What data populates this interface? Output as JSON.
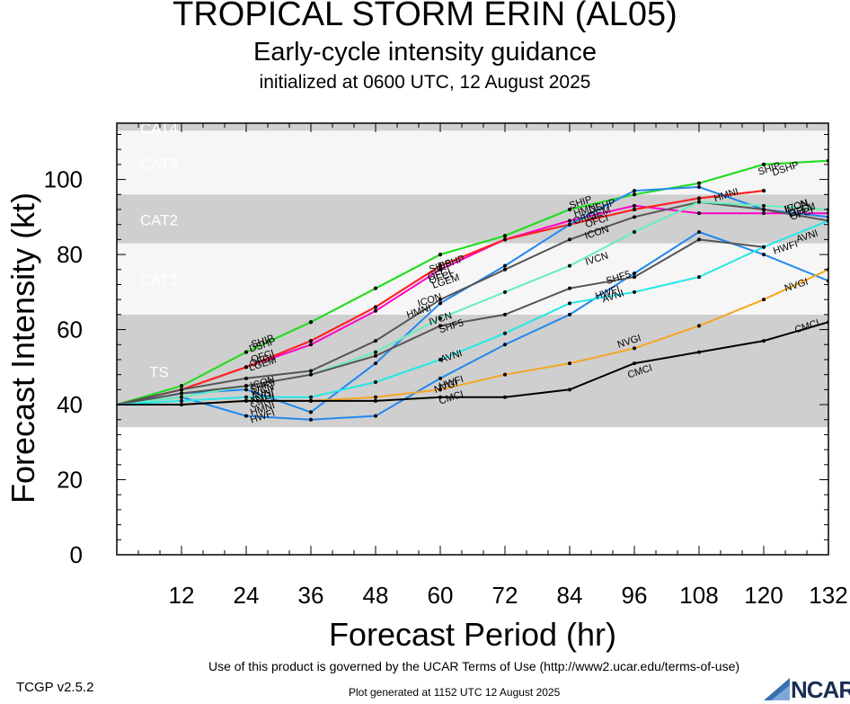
{
  "title": "TROPICAL STORM ERIN (AL05)",
  "subtitle": "Early-cycle intensity guidance",
  "initialized": "initialized at 0600 UTC, 12 August 2025",
  "footer": {
    "terms": "Use of this product is governed by the UCAR Terms of Use (http://www2.ucar.edu/terms-of-use)",
    "version": "TCGP v2.5.2",
    "generated": "Plot generated at 1152 UTC   12 August 2025",
    "logo_text": "NCAR",
    "logo_icon": "ncar-logo-icon"
  },
  "chart_data": {
    "type": "line",
    "xlabel": "Forecast Period (hr)",
    "ylabel": "Forecast Intensity (kt)",
    "xlim": [
      0,
      132
    ],
    "ylim": [
      0,
      115
    ],
    "xticks": [
      12,
      24,
      36,
      48,
      60,
      72,
      84,
      96,
      108,
      120,
      132
    ],
    "yticks": [
      0,
      20,
      40,
      60,
      80,
      100
    ],
    "grid": false,
    "category_bands": [
      {
        "name": "TS",
        "from": 34,
        "to": 64,
        "color": "#cfcfcf"
      },
      {
        "name": "CAT1",
        "from": 64,
        "to": 83,
        "color": "#f6f6f6"
      },
      {
        "name": "CAT2",
        "from": 83,
        "to": 96,
        "color": "#cfcfcf"
      },
      {
        "name": "CAT3",
        "from": 96,
        "to": 113,
        "color": "#f6f6f6"
      },
      {
        "name": "CAT4",
        "from": 113,
        "to": 137,
        "color": "#cfcfcf"
      }
    ],
    "series": [
      {
        "name": "SHIP",
        "color": "#22dd22",
        "x": [
          0,
          12,
          24,
          36,
          48,
          60,
          72,
          84,
          96,
          108,
          120,
          132
        ],
        "y": [
          40,
          45,
          54,
          62,
          71,
          80,
          85,
          92,
          96,
          99,
          104,
          105
        ]
      },
      {
        "name": "DSHP",
        "color": "#22dd22",
        "x": [
          0,
          12,
          24,
          36,
          48,
          60,
          72,
          84,
          96,
          108,
          120,
          132
        ],
        "y": [
          40,
          45,
          54,
          62,
          71,
          80,
          85,
          92,
          96,
          99,
          104,
          105
        ]
      },
      {
        "name": "LGEM",
        "color": "#ff00cc",
        "x": [
          0,
          12,
          24,
          36,
          48,
          60,
          72,
          84,
          96,
          108,
          120,
          132
        ],
        "y": [
          40,
          44,
          50,
          56,
          65,
          76,
          84,
          89,
          93,
          91,
          91,
          91
        ]
      },
      {
        "name": "OFCI",
        "color": "#ff2222",
        "x": [
          0,
          12,
          24,
          36,
          48,
          60,
          72,
          84,
          96,
          108,
          120
        ],
        "y": [
          40,
          44,
          50,
          57,
          66,
          77,
          84,
          88,
          92,
          95,
          97
        ]
      },
      {
        "name": "OFCL",
        "color": "#ff2222",
        "x": [
          0,
          12,
          24,
          36,
          48,
          60,
          72,
          84,
          96,
          108,
          120
        ],
        "y": [
          40,
          44,
          50,
          57,
          66,
          77,
          84,
          88,
          92,
          95,
          97
        ]
      },
      {
        "name": "HMNI",
        "color": "#2288ee",
        "x": [
          0,
          12,
          24,
          36,
          48,
          60,
          72,
          84,
          96,
          108,
          120,
          132
        ],
        "y": [
          40,
          43,
          44,
          38,
          51,
          67,
          77,
          88,
          97,
          98,
          92,
          90
        ]
      },
      {
        "name": "HWFI",
        "color": "#2288ee",
        "x": [
          0,
          12,
          24,
          36,
          48,
          60,
          72,
          84,
          96,
          108,
          120,
          132
        ],
        "y": [
          40,
          42,
          37,
          36,
          37,
          47,
          56,
          64,
          75,
          86,
          80,
          73
        ]
      },
      {
        "name": "ICON",
        "color": "#555555",
        "x": [
          0,
          12,
          24,
          36,
          48,
          60,
          72,
          84,
          96,
          108,
          120,
          132
        ],
        "y": [
          40,
          44,
          47,
          49,
          57,
          68,
          76,
          84,
          90,
          94,
          92,
          89
        ]
      },
      {
        "name": "IVCN",
        "color": "#66eebb",
        "x": [
          0,
          12,
          24,
          36,
          48,
          60,
          72,
          84,
          96,
          108,
          120,
          132
        ],
        "y": [
          40,
          42,
          45,
          48,
          54,
          63,
          70,
          77,
          86,
          94,
          93,
          92
        ]
      },
      {
        "name": "SHF5",
        "color": "#555555",
        "x": [
          0,
          12,
          24,
          36,
          48,
          60,
          72,
          84,
          96,
          108,
          120
        ],
        "y": [
          40,
          43,
          45,
          48,
          53,
          61,
          64,
          71,
          74,
          84,
          82
        ]
      },
      {
        "name": "AVNI",
        "color": "#22e8e8",
        "x": [
          0,
          12,
          24,
          36,
          48,
          60,
          72,
          84,
          96,
          108,
          120,
          132
        ],
        "y": [
          40,
          41,
          42,
          42,
          46,
          52,
          59,
          67,
          70,
          74,
          82,
          89
        ]
      },
      {
        "name": "NVGI",
        "color": "#f5a623",
        "x": [
          0,
          12,
          24,
          36,
          48,
          60,
          72,
          84,
          96,
          108,
          120,
          132
        ],
        "y": [
          40,
          40,
          41,
          41,
          42,
          44,
          48,
          51,
          55,
          61,
          68,
          76
        ]
      },
      {
        "name": "CMCI",
        "color": "#000000",
        "x": [
          0,
          12,
          24,
          36,
          48,
          60,
          72,
          84,
          96,
          108,
          120,
          132
        ],
        "y": [
          40,
          40,
          41,
          41,
          41,
          42,
          42,
          44,
          51,
          54,
          57,
          62
        ]
      }
    ],
    "labels": [
      {
        "text": "DSHP",
        "x": 27,
        "y": 56
      },
      {
        "text": "SHIP",
        "x": 27,
        "y": 57
      },
      {
        "text": "OFCI",
        "x": 27,
        "y": 53
      },
      {
        "text": "OFCL",
        "x": 27,
        "y": 52
      },
      {
        "text": "LGEM",
        "x": 27,
        "y": 51
      },
      {
        "text": "ICON",
        "x": 27,
        "y": 46
      },
      {
        "text": "SHF5",
        "x": 27,
        "y": 45
      },
      {
        "text": "IVCN",
        "x": 27,
        "y": 44
      },
      {
        "text": "AVNI",
        "x": 27,
        "y": 43
      },
      {
        "text": "NVGI",
        "x": 27,
        "y": 42
      },
      {
        "text": "CMCI",
        "x": 27,
        "y": 41
      },
      {
        "text": "HMNI",
        "x": 27,
        "y": 39
      },
      {
        "text": "HWFI",
        "x": 27,
        "y": 37
      },
      {
        "text": "DSHP",
        "x": 62,
        "y": 78
      },
      {
        "text": "SHIP",
        "x": 60,
        "y": 77
      },
      {
        "text": "OFCL",
        "x": 60,
        "y": 75
      },
      {
        "text": "OFCI",
        "x": 60,
        "y": 74
      },
      {
        "text": "LGEM",
        "x": 61,
        "y": 73
      },
      {
        "text": "ICON",
        "x": 58,
        "y": 68
      },
      {
        "text": "HMNI",
        "x": 56,
        "y": 65
      },
      {
        "text": "IVCN",
        "x": 60,
        "y": 63
      },
      {
        "text": "SHF5",
        "x": 62,
        "y": 61
      },
      {
        "text": "AVNI",
        "x": 62,
        "y": 53
      },
      {
        "text": "HWFI",
        "x": 62,
        "y": 46
      },
      {
        "text": "NVGI",
        "x": 61,
        "y": 45
      },
      {
        "text": "CMCI",
        "x": 62,
        "y": 42
      },
      {
        "text": "SHIP",
        "x": 86,
        "y": 94
      },
      {
        "text": "DSHP",
        "x": 90,
        "y": 93
      },
      {
        "text": "HMNI",
        "x": 87,
        "y": 92
      },
      {
        "text": "LGEM",
        "x": 89,
        "y": 91
      },
      {
        "text": "OFCL",
        "x": 87,
        "y": 90
      },
      {
        "text": "OFCI",
        "x": 89,
        "y": 89
      },
      {
        "text": "ICON",
        "x": 89,
        "y": 86
      },
      {
        "text": "IVCN",
        "x": 89,
        "y": 79
      },
      {
        "text": "SHF5",
        "x": 93,
        "y": 74
      },
      {
        "text": "HWFI",
        "x": 91,
        "y": 70
      },
      {
        "text": "AVNI",
        "x": 92,
        "y": 69
      },
      {
        "text": "NVGI",
        "x": 95,
        "y": 57
      },
      {
        "text": "CMCI",
        "x": 97,
        "y": 49
      },
      {
        "text": "SHIP",
        "x": 121,
        "y": 103
      },
      {
        "text": "DSHP",
        "x": 124,
        "y": 103
      },
      {
        "text": "HMNI",
        "x": 113,
        "y": 96
      },
      {
        "text": "IVCN",
        "x": 126,
        "y": 93
      },
      {
        "text": "ICON",
        "x": 126,
        "y": 93
      },
      {
        "text": "OFCL",
        "x": 127,
        "y": 92
      },
      {
        "text": "LGEM",
        "x": 127,
        "y": 92
      },
      {
        "text": "OFCI",
        "x": 127,
        "y": 91
      },
      {
        "text": "HWFI",
        "x": 124,
        "y": 82
      },
      {
        "text": "AVNI",
        "x": 128,
        "y": 85
      },
      {
        "text": "NVGI",
        "x": 126,
        "y": 72
      },
      {
        "text": "CMCI",
        "x": 128,
        "y": 61
      }
    ]
  }
}
